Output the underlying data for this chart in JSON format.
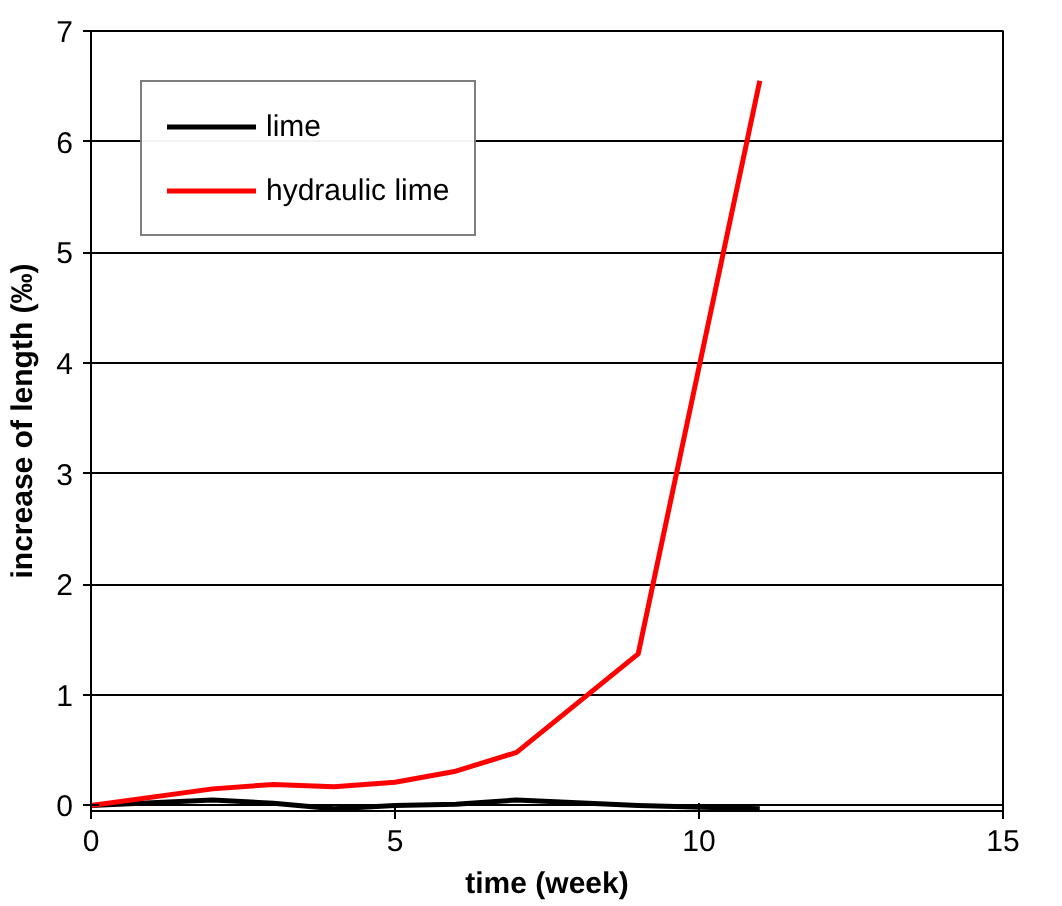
{
  "chart_data": {
    "type": "line",
    "xlabel": "time (week)",
    "ylabel": "increase of length (‰)",
    "x": [
      0,
      2,
      3,
      4,
      5,
      6,
      7,
      9,
      11
    ],
    "series": [
      {
        "name": "lime",
        "color": "#000000",
        "values": [
          0,
          0.05,
          0.02,
          -0.03,
          0,
          0.01,
          0.05,
          0,
          -0.03
        ]
      },
      {
        "name": "hydraulic lime",
        "color": "#ff0000",
        "values": [
          0,
          0.15,
          0.19,
          0.17,
          0.21,
          0.31,
          0.48,
          1.37,
          6.55
        ]
      }
    ],
    "xlim": [
      0,
      15
    ],
    "xticks": [
      0,
      5,
      10,
      15
    ],
    "ylim": [
      -0.05,
      7
    ],
    "yticks": [
      0,
      1,
      2,
      3,
      4,
      5,
      6,
      7
    ],
    "grid": "y",
    "legend": "top left",
    "marker": "none",
    "line_style": "solid"
  }
}
